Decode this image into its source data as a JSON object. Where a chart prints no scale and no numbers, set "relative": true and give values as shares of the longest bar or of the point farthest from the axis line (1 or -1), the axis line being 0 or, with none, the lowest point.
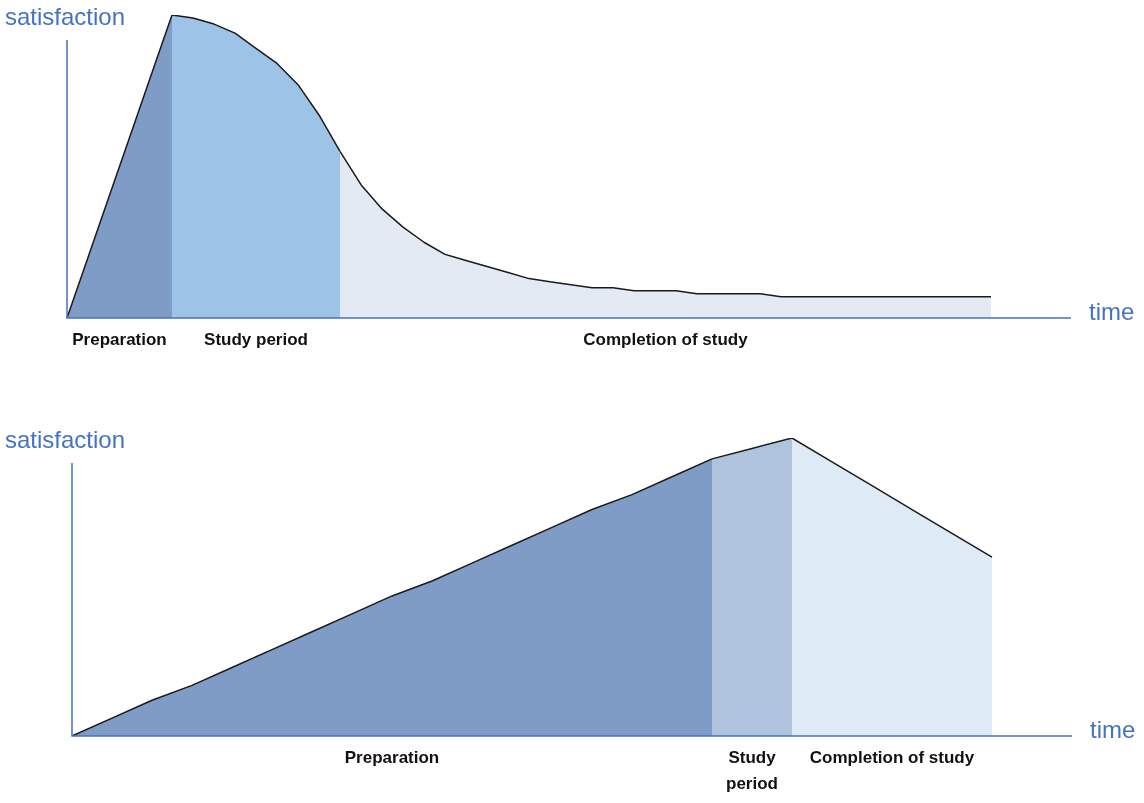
{
  "chart_data": [
    {
      "type": "area",
      "relative": true,
      "xlabel": "time",
      "ylabel": "satisfaction",
      "legend": false,
      "categories": [
        null,
        null,
        null,
        null,
        null,
        null,
        null,
        null,
        null,
        null,
        null,
        null,
        null,
        null,
        null,
        null,
        null,
        null,
        null,
        null,
        null,
        null,
        null,
        null,
        null,
        null,
        null,
        null,
        null,
        null,
        null,
        null,
        null,
        null,
        null,
        null,
        null,
        null,
        null,
        null,
        null,
        null,
        null,
        null,
        null
      ],
      "series": [
        {
          "name": "Preparation",
          "color": "#7f9cc7",
          "values": [
            0,
            0.2,
            0.4,
            0.6,
            0.8,
            1.0,
            null,
            null,
            null,
            null,
            null,
            null,
            null,
            null,
            null,
            null,
            null,
            null,
            null,
            null,
            null,
            null,
            null,
            null,
            null,
            null,
            null,
            null,
            null,
            null,
            null,
            null,
            null,
            null,
            null,
            null,
            null,
            null,
            null,
            null,
            null,
            null,
            null,
            null,
            null
          ]
        },
        {
          "name": "Study period",
          "color": "#9dc3e6",
          "values": [
            null,
            null,
            null,
            null,
            null,
            1.0,
            0.99,
            0.97,
            0.94,
            0.89,
            0.84,
            0.77,
            0.67,
            0.55,
            null,
            null,
            null,
            null,
            null,
            null,
            null,
            null,
            null,
            null,
            null,
            null,
            null,
            null,
            null,
            null,
            null,
            null,
            null,
            null,
            null,
            null,
            null,
            null,
            null,
            null,
            null,
            null,
            null,
            null,
            null
          ]
        },
        {
          "name": "Completion of study",
          "color": "#e4eaf3",
          "values": [
            null,
            null,
            null,
            null,
            null,
            null,
            null,
            null,
            null,
            null,
            null,
            null,
            null,
            0.55,
            0.44,
            0.36,
            0.3,
            0.25,
            0.21,
            0.19,
            0.17,
            0.15,
            0.13,
            0.12,
            0.11,
            0.1,
            0.1,
            0.09,
            0.09,
            0.09,
            0.08,
            0.08,
            0.08,
            0.08,
            0.07,
            0.07,
            0.07,
            0.07,
            0.07,
            0.07,
            0.07,
            0.07,
            0.07,
            0.07,
            0.07
          ]
        }
      ]
    },
    {
      "type": "area",
      "relative": true,
      "xlabel": "time",
      "ylabel": "satisfaction",
      "legend": false,
      "categories": [
        null,
        null,
        null,
        null,
        null,
        null,
        null,
        null,
        null,
        null,
        null,
        null,
        null,
        null,
        null,
        null,
        null,
        null,
        null,
        null,
        null,
        null,
        null,
        null
      ],
      "series": [
        {
          "name": "Preparation",
          "color": "#7f9cc7",
          "values": [
            0,
            0.06,
            0.12,
            0.17,
            0.23,
            0.29,
            0.35,
            0.41,
            0.47,
            0.52,
            0.58,
            0.64,
            0.7,
            0.76,
            0.81,
            0.87,
            0.93,
            null,
            null,
            null,
            null,
            null,
            null,
            null
          ]
        },
        {
          "name": "Study period",
          "color": "#b0c3dc",
          "values": [
            null,
            null,
            null,
            null,
            null,
            null,
            null,
            null,
            null,
            null,
            null,
            null,
            null,
            null,
            null,
            null,
            0.93,
            0.965,
            1.0,
            null,
            null,
            null,
            null,
            null
          ]
        },
        {
          "name": "Completion of study",
          "color": "#deeaf6",
          "values": [
            null,
            null,
            null,
            null,
            null,
            null,
            null,
            null,
            null,
            null,
            null,
            null,
            null,
            null,
            null,
            null,
            null,
            null,
            1.0,
            0.92,
            0.84,
            0.76,
            0.68,
            0.6
          ]
        }
      ]
    }
  ]
}
